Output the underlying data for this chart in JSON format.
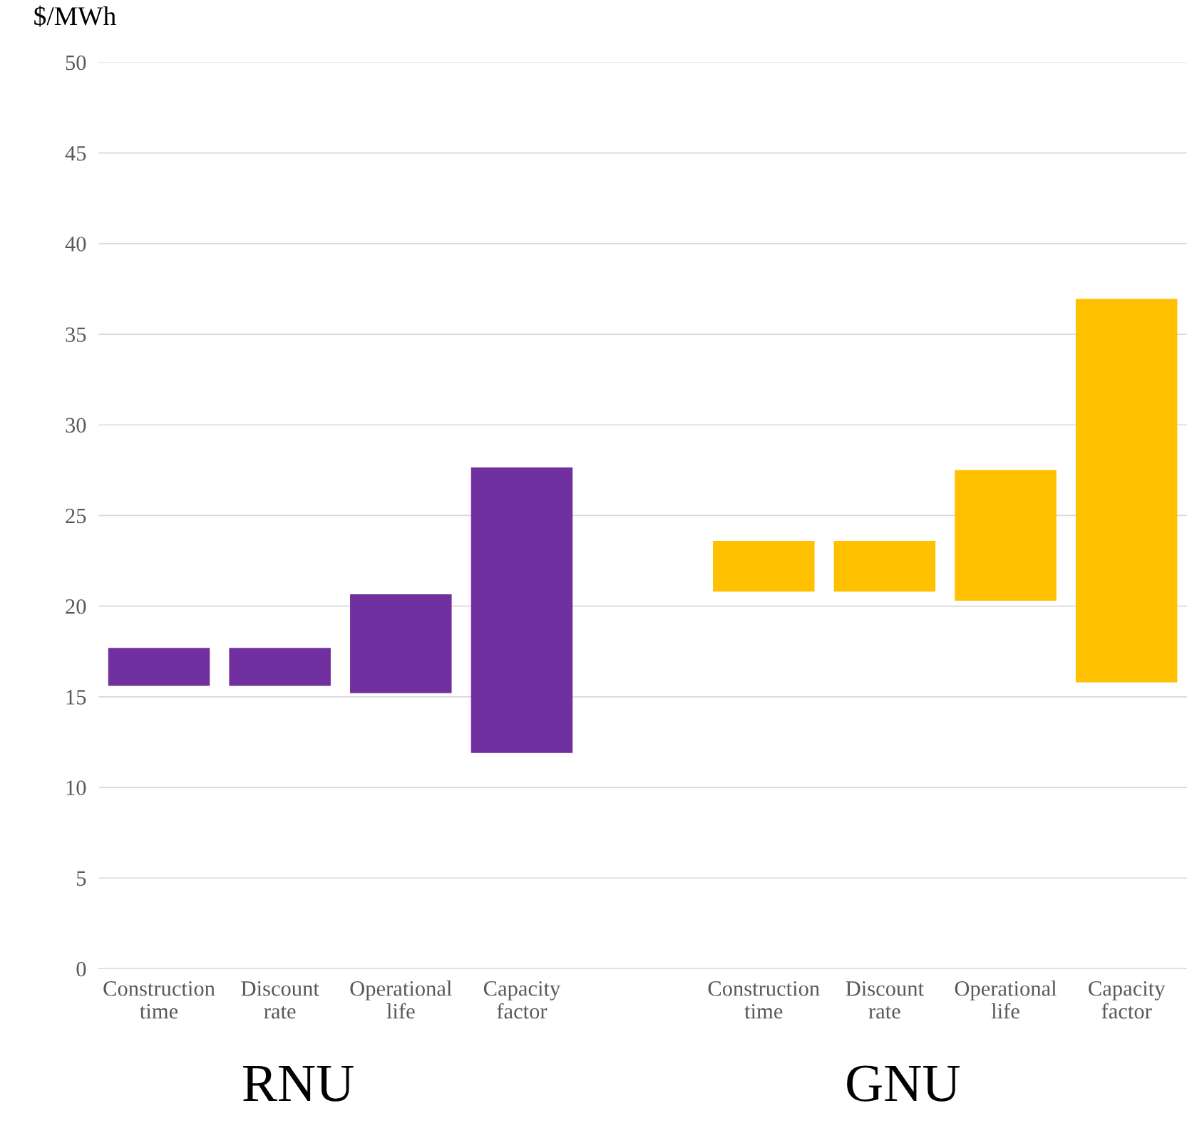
{
  "chart_data": {
    "type": "bar",
    "ylabel": "$/MWh",
    "categories": [
      "Construction\ntime",
      "Discount\nrate",
      "Operational\nlife",
      "Capacity\nfactor",
      null,
      "Construction\ntime",
      "Discount\nrate",
      "Operational\nlife",
      "Capacity\nfactor"
    ],
    "base": [
      15.6,
      15.6,
      15.2,
      11.9,
      null,
      20.8,
      20.8,
      20.3,
      15.8
    ],
    "values": [
      2.1,
      2.1,
      5.45,
      15.75,
      null,
      2.8,
      2.8,
      7.2,
      21.15
    ],
    "colors": [
      "#7030a0",
      "#7030a0",
      "#7030a0",
      "#7030a0",
      "#ffffff",
      "#ffc000",
      "#ffc000",
      "#ffc000",
      "#ffc000"
    ],
    "ylim": [
      0,
      50
    ],
    "yticks": [
      0,
      5,
      10,
      15,
      20,
      25,
      30,
      35,
      40,
      45,
      50
    ],
    "grid": "y",
    "annotations": [
      "RNU",
      "GNU"
    ]
  }
}
